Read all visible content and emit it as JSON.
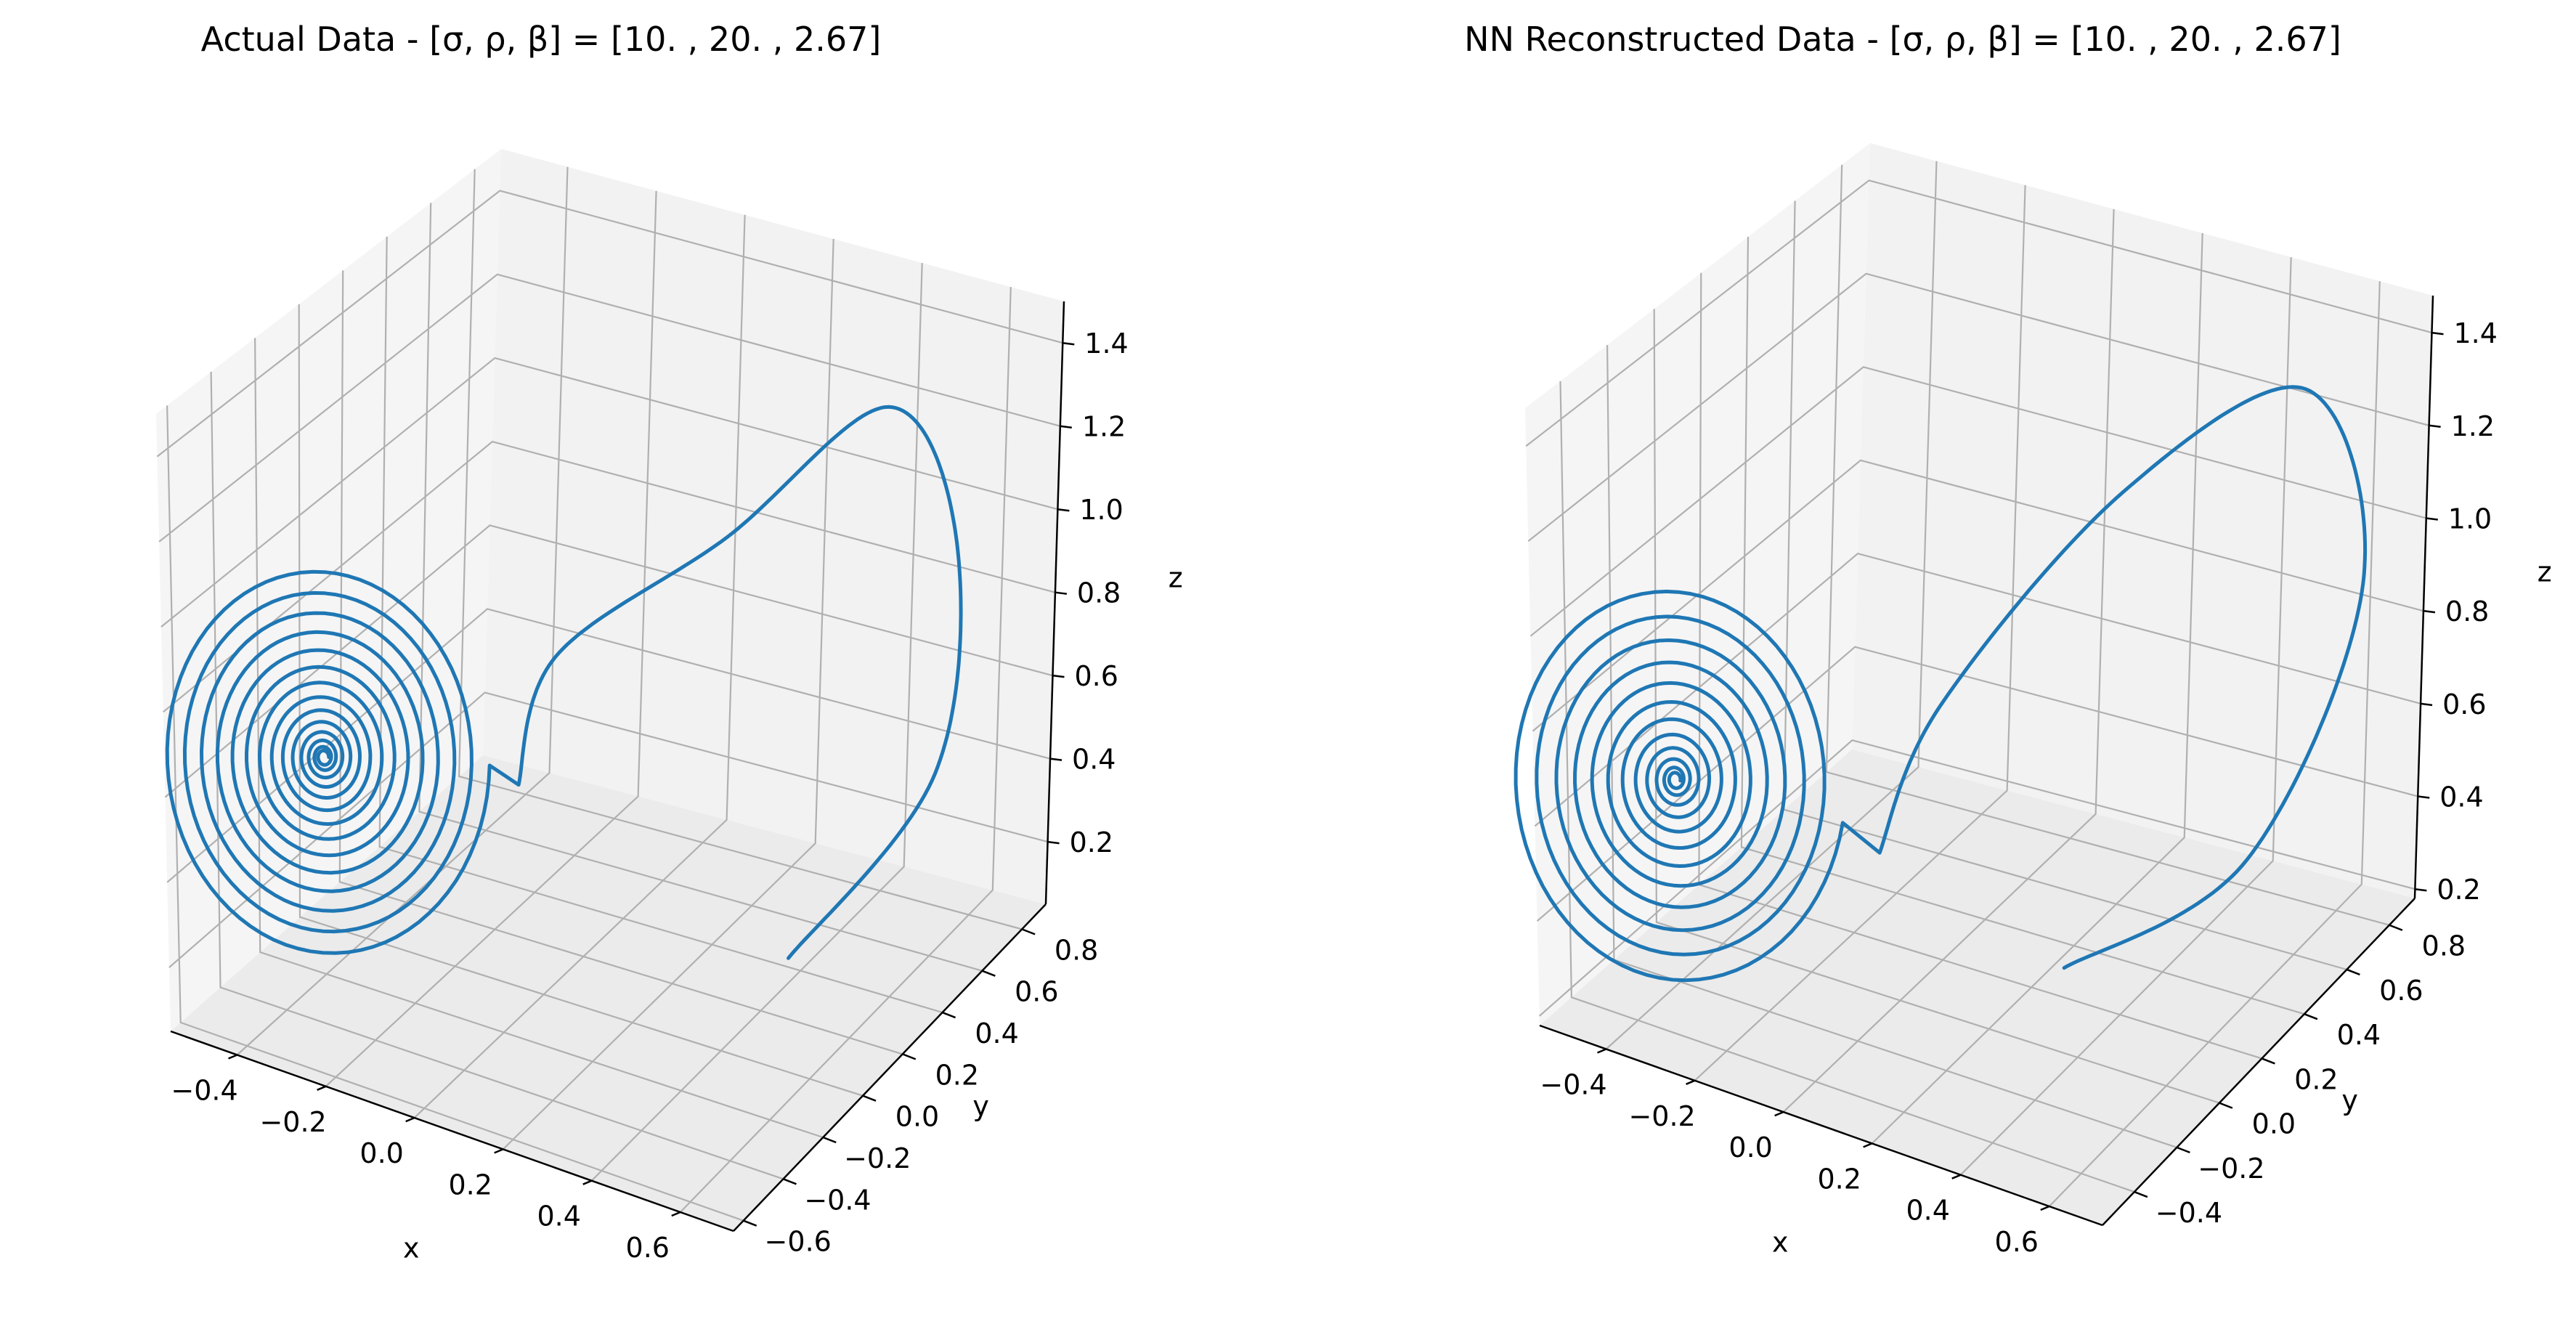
{
  "figure": {
    "background": "#ffffff",
    "line_color": "#1f77b4"
  },
  "chart_data": [
    {
      "type": "line",
      "projection": "3d",
      "title": "Actual Data - [σ, ρ, β] = [10.  , 20.  ,  2.67]",
      "xlabel": "x",
      "ylabel": "y",
      "zlabel": "z",
      "xlim": [
        -0.55,
        0.72
      ],
      "ylim": [
        -0.65,
        0.92
      ],
      "zlim": [
        0.05,
        1.5
      ],
      "xticks": [
        -0.4,
        -0.2,
        0.0,
        0.2,
        0.4,
        0.6
      ],
      "xtick_labels": [
        "−0.4",
        "−0.2",
        "0.0",
        "0.2",
        "0.4",
        "0.6"
      ],
      "yticks": [
        -0.6,
        -0.4,
        -0.2,
        0.0,
        0.2,
        0.4,
        0.6,
        0.8
      ],
      "ytick_labels": [
        "−0.6",
        "−0.4",
        "−0.2",
        "0.0",
        "0.2",
        "0.4",
        "0.6",
        "0.8"
      ],
      "zticks": [
        0.2,
        0.4,
        0.6,
        0.8,
        1.0,
        1.2,
        1.4
      ],
      "ztick_labels": [
        "0.2",
        "0.4",
        "0.6",
        "0.8",
        "1.0",
        "1.2",
        "1.4"
      ],
      "grid": true,
      "series": [
        {
          "start": [
            0.35,
            0.45,
            0.1
          ],
          "path": [
            [
              0.56,
              0.72,
              0.5
            ],
            [
              0.6,
              0.74,
              1.05
            ],
            [
              0.5,
              0.62,
              1.38
            ],
            [
              0.26,
              0.34,
              1.1
            ],
            [
              0.0,
              0.06,
              0.84
            ],
            [
              -0.04,
              -0.04,
              0.56
            ]
          ],
          "fixed_point": [
            -0.33,
            -0.37,
            0.66
          ],
          "spiral_turns": 14,
          "spiral_start_radius": 0.24
        }
      ]
    },
    {
      "type": "line",
      "projection": "3d",
      "title": "NN Reconstructed Data - [σ, ρ, β] = [10.  , 20.  ,  2.67]",
      "xlabel": "x",
      "ylabel": "y",
      "zlabel": "z",
      "xlim": [
        -0.55,
        0.72
      ],
      "ylim": [
        -0.55,
        0.92
      ],
      "zlim": [
        0.18,
        1.48
      ],
      "xticks": [
        -0.4,
        -0.2,
        0.0,
        0.2,
        0.4,
        0.6
      ],
      "xtick_labels": [
        "−0.4",
        "−0.2",
        "0.0",
        "0.2",
        "0.4",
        "0.6"
      ],
      "yticks": [
        -0.4,
        -0.2,
        0.0,
        0.2,
        0.4,
        0.6,
        0.8
      ],
      "ytick_labels": [
        "−0.4",
        "−0.2",
        "0.0",
        "0.2",
        "0.4",
        "0.6",
        "0.8"
      ],
      "zticks": [
        0.2,
        0.4,
        0.6,
        0.8,
        1.0,
        1.2,
        1.4
      ],
      "ztick_labels": [
        "0.2",
        "0.4",
        "0.6",
        "0.8",
        "1.0",
        "1.2",
        "1.4"
      ],
      "grid": true,
      "series": [
        {
          "start": [
            0.25,
            0.25,
            0.25
          ],
          "path": [
            [
              0.52,
              0.55,
              0.45
            ],
            [
              0.68,
              0.76,
              1.0
            ],
            [
              0.58,
              0.7,
              1.4
            ],
            [
              0.3,
              0.42,
              1.2
            ],
            [
              0.05,
              0.08,
              0.8
            ],
            [
              -0.02,
              -0.06,
              0.52
            ]
          ],
          "fixed_point": [
            -0.33,
            -0.37,
            0.7
          ],
          "spiral_turns": 12,
          "spiral_start_radius": 0.25
        }
      ]
    }
  ]
}
